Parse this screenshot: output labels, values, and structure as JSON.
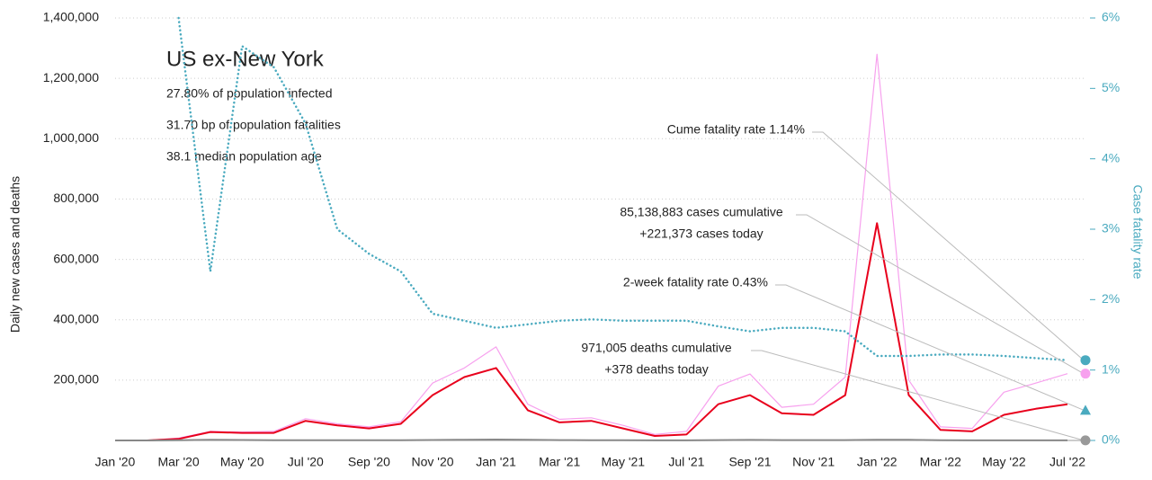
{
  "chart_data": {
    "type": "line",
    "title": "US ex-New York",
    "notes": [
      "27.80% of population infected",
      "31.70 bp of population fatalities",
      "38.1 median population age"
    ],
    "y_label": "Daily new cases and deaths",
    "y2_label": "Case fatality rate",
    "categories": [
      "Jan '20",
      null,
      "Mar '20",
      null,
      "May '20",
      null,
      "Jul '20",
      null,
      "Sep '20",
      null,
      "Nov '20",
      null,
      "Jan '21",
      null,
      "Mar '21",
      null,
      "May '21",
      null,
      "Jul '21",
      null,
      "Sep '21",
      null,
      "Nov '21",
      null,
      "Jan '22",
      null,
      "Mar '22",
      null,
      "May '22",
      null,
      "Jul '22"
    ],
    "series": [
      {
        "color": "#f7a1ee",
        "width": 1.2,
        "values": [
          0,
          0,
          8000,
          30000,
          28000,
          30000,
          72000,
          55000,
          45000,
          62000,
          190000,
          240000,
          310000,
          120000,
          70000,
          75000,
          50000,
          20000,
          30000,
          180000,
          220000,
          110000,
          120000,
          210000,
          1280000,
          200000,
          45000,
          40000,
          160000,
          190000,
          221373
        ]
      },
      {
        "color": "#e8001c",
        "width": 2,
        "values": [
          0,
          0,
          5000,
          28000,
          25000,
          25000,
          65000,
          50000,
          40000,
          55000,
          150000,
          210000,
          240000,
          100000,
          60000,
          65000,
          40000,
          15000,
          20000,
          120000,
          150000,
          90000,
          85000,
          150000,
          720000,
          150000,
          35000,
          30000,
          85000,
          105000,
          120000
        ]
      },
      {
        "color": "#4aaabf",
        "width": 2.5,
        "style": "dotted",
        "axis": "y2",
        "values": [
          null,
          null,
          6,
          2.4,
          5.6,
          5.3,
          4.5,
          3.0,
          2.65,
          2.4,
          1.8,
          1.7,
          1.6,
          1.65,
          1.7,
          1.72,
          1.7,
          1.7,
          1.7,
          1.62,
          1.55,
          1.6,
          1.6,
          1.55,
          1.2,
          1.2,
          1.22,
          1.22,
          1.2,
          1.17,
          1.14
        ]
      },
      {
        "color": "#888888",
        "width": 2,
        "values": [
          0,
          0,
          500,
          2000,
          1500,
          700,
          1000,
          1000,
          800,
          800,
          1500,
          2500,
          3000,
          2200,
          1200,
          800,
          600,
          300,
          300,
          1200,
          1800,
          1200,
          1100,
          1300,
          2300,
          2200,
          900,
          400,
          350,
          350,
          378
        ]
      }
    ],
    "ylim": [
      0,
      1400000
    ],
    "yticks": [
      {
        "value": 200000,
        "label": "200,000"
      },
      {
        "value": 400000,
        "label": "400,000"
      },
      {
        "value": 600000,
        "label": "600,000"
      },
      {
        "value": 800000,
        "label": "800,000"
      },
      {
        "value": 1000000,
        "label": "1,000,000"
      },
      {
        "value": 1200000,
        "label": "1,200,000"
      },
      {
        "value": 1400000,
        "label": "1,400,000"
      }
    ],
    "y2lim": [
      0,
      6
    ],
    "y2ticks": [
      {
        "value": 0,
        "label": "0%"
      },
      {
        "value": 1,
        "label": "1%"
      },
      {
        "value": 2,
        "label": "2%"
      },
      {
        "value": 3,
        "label": "3%"
      },
      {
        "value": 4,
        "label": "4%"
      },
      {
        "value": 5,
        "label": "5%"
      },
      {
        "value": 6,
        "label": "6%"
      }
    ],
    "grid": true,
    "annotations": [
      {
        "lines": [
          "Cume fatality rate 1.14%"
        ],
        "value": 1.14,
        "axis": "y2",
        "marker": "circle",
        "color": "#4aaabf"
      },
      {
        "lines": [
          "85,138,883 cases cumulative",
          "+221,373 cases today"
        ],
        "value": 221373,
        "marker": "circle",
        "color": "#f7a1ee"
      },
      {
        "lines": [
          "2-week fatality rate 0.43%"
        ],
        "value": 0.43,
        "axis": "y2",
        "marker": "triangle",
        "color": "#4aaabf"
      },
      {
        "lines": [
          "971,005 deaths cumulative",
          "+378 deaths today"
        ],
        "value": 378,
        "marker": "circle",
        "color": "#999999"
      }
    ]
  }
}
